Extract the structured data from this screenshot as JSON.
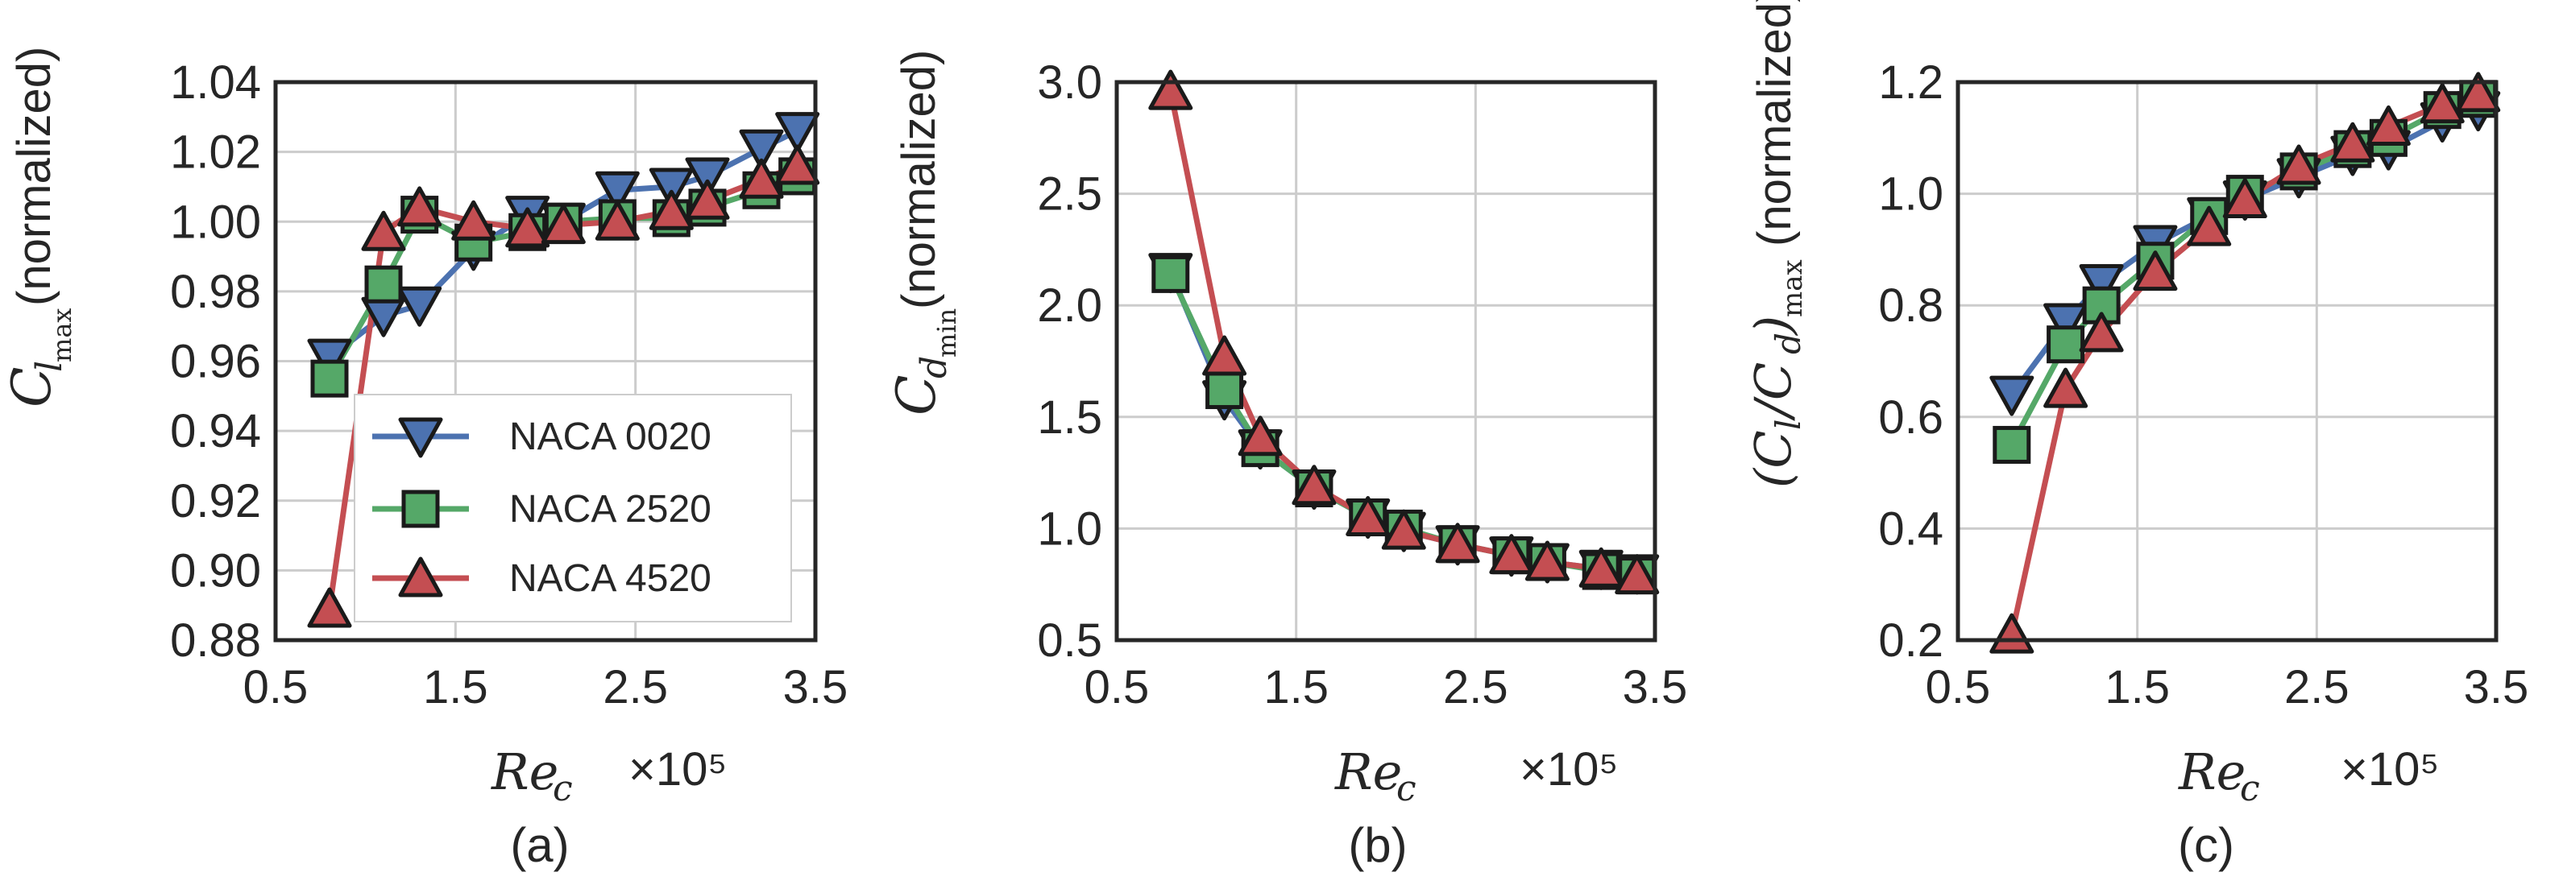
{
  "colors": {
    "NACA 0020": "#4c72b0",
    "NACA 2520": "#55a868",
    "NACA 4520": "#c44e52"
  },
  "chart_data": [
    {
      "type": "line",
      "panel": "(a)",
      "caption": "(a)",
      "xlabel": "Re_c",
      "ylabel": "C_l_max (normalized)",
      "x_multiplier": "×10⁵",
      "xlim": [
        0.5,
        3.5
      ],
      "ylim": [
        0.88,
        1.04
      ],
      "xticks": [
        "0.5",
        "1.5",
        "2.5",
        "3.5"
      ],
      "yticks": [
        "0.88",
        "0.90",
        "0.92",
        "0.94",
        "0.96",
        "0.98",
        "1.00",
        "1.02",
        "1.04"
      ],
      "grid": true,
      "legend": "lower-right",
      "series": [
        {
          "name": "NACA 0020",
          "marker": "triangle-down",
          "x": [
            0.8,
            1.1,
            1.3,
            1.6,
            1.9,
            2.1,
            2.4,
            2.7,
            2.9,
            3.2,
            3.4
          ],
          "y": [
            0.961,
            0.973,
            0.976,
            0.992,
            1.002,
            1.0,
            1.009,
            1.01,
            1.013,
            1.021,
            1.026
          ]
        },
        {
          "name": "NACA 2520",
          "marker": "square",
          "x": [
            0.8,
            1.1,
            1.3,
            1.6,
            1.9,
            2.1,
            2.4,
            2.7,
            2.9,
            3.2,
            3.4
          ],
          "y": [
            0.955,
            0.982,
            1.002,
            0.994,
            0.997,
            1.0,
            1.001,
            1.001,
            1.004,
            1.009,
            1.013
          ]
        },
        {
          "name": "NACA 4520",
          "marker": "triangle-up",
          "x": [
            0.8,
            1.1,
            1.3,
            1.6,
            1.9,
            2.1,
            2.4,
            2.7,
            2.9,
            3.2,
            3.4
          ],
          "y": [
            0.889,
            0.997,
            1.004,
            1.0,
            0.998,
            0.999,
            1.0,
            1.003,
            1.006,
            1.012,
            1.016
          ]
        }
      ]
    },
    {
      "type": "line",
      "panel": "(b)",
      "caption": "(b)",
      "xlabel": "Re_c",
      "ylabel": "C_d_min (normalized)",
      "x_multiplier": "×10⁵",
      "xlim": [
        0.5,
        3.5
      ],
      "ylim": [
        0.5,
        3.0
      ],
      "xticks": [
        "0.5",
        "1.5",
        "2.5",
        "3.5"
      ],
      "yticks": [
        "0.5",
        "1.0",
        "1.5",
        "2.0",
        "2.5",
        "3.0"
      ],
      "grid": true,
      "series": [
        {
          "name": "NACA 0020",
          "marker": "triangle-down",
          "x": [
            0.8,
            1.1,
            1.3,
            1.6,
            1.9,
            2.1,
            2.4,
            2.7,
            2.9,
            3.2,
            3.4
          ],
          "y": [
            2.15,
            1.58,
            1.36,
            1.18,
            1.05,
            0.99,
            0.93,
            0.88,
            0.85,
            0.82,
            0.8
          ]
        },
        {
          "name": "NACA 2520",
          "marker": "square",
          "x": [
            0.8,
            1.1,
            1.3,
            1.6,
            1.9,
            2.1,
            2.4,
            2.7,
            2.9,
            3.2,
            3.4
          ],
          "y": [
            2.14,
            1.62,
            1.36,
            1.18,
            1.05,
            1.0,
            0.93,
            0.88,
            0.85,
            0.81,
            0.79
          ]
        },
        {
          "name": "NACA 4520",
          "marker": "triangle-up",
          "x": [
            0.8,
            1.1,
            1.3,
            1.6,
            1.9,
            2.1,
            2.4,
            2.7,
            2.9,
            3.2,
            3.4
          ],
          "y": [
            2.96,
            1.77,
            1.41,
            1.19,
            1.05,
            0.99,
            0.93,
            0.88,
            0.85,
            0.82,
            0.79
          ]
        }
      ]
    },
    {
      "type": "line",
      "panel": "(c)",
      "caption": "(c)",
      "xlabel": "Re_c",
      "ylabel": "(C_l/C_d)_max (normalized)",
      "x_multiplier": "×10⁵",
      "xlim": [
        0.5,
        3.5
      ],
      "ylim": [
        0.2,
        1.2
      ],
      "xticks": [
        "0.5",
        "1.5",
        "2.5",
        "3.5"
      ],
      "yticks": [
        "0.2",
        "0.4",
        "0.6",
        "0.8",
        "1.0",
        "1.2"
      ],
      "grid": true,
      "series": [
        {
          "name": "NACA 0020",
          "marker": "triangle-down",
          "x": [
            0.8,
            1.1,
            1.3,
            1.6,
            1.9,
            2.1,
            2.4,
            2.7,
            2.9,
            3.2,
            3.4
          ],
          "y": [
            0.64,
            0.77,
            0.84,
            0.91,
            0.96,
            0.99,
            1.03,
            1.07,
            1.08,
            1.13,
            1.15
          ]
        },
        {
          "name": "NACA 2520",
          "marker": "square",
          "x": [
            0.8,
            1.1,
            1.3,
            1.6,
            1.9,
            2.1,
            2.4,
            2.7,
            2.9,
            3.2,
            3.4
          ],
          "y": [
            0.55,
            0.73,
            0.8,
            0.88,
            0.96,
            1.0,
            1.04,
            1.08,
            1.1,
            1.15,
            1.17
          ]
        },
        {
          "name": "NACA 4520",
          "marker": "triangle-up",
          "x": [
            0.8,
            1.1,
            1.3,
            1.6,
            1.9,
            2.1,
            2.4,
            2.7,
            2.9,
            3.2,
            3.4
          ],
          "y": [
            0.21,
            0.65,
            0.75,
            0.86,
            0.94,
            0.99,
            1.05,
            1.09,
            1.12,
            1.16,
            1.18
          ]
        }
      ]
    }
  ]
}
